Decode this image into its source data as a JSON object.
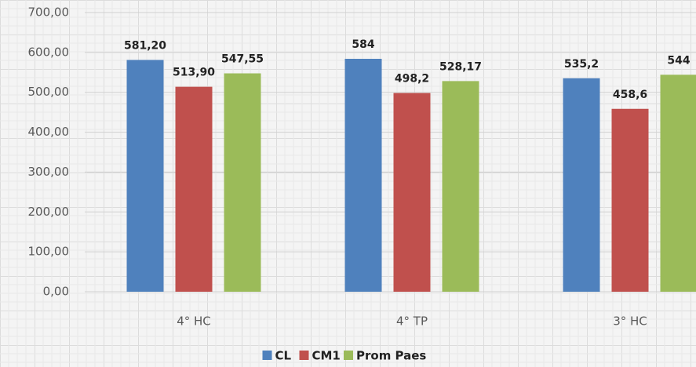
{
  "chart_data": {
    "type": "bar",
    "categories": [
      "4° HC",
      "4° TP",
      "3° HC"
    ],
    "series": [
      {
        "name": "CL",
        "color": "#4f81bd",
        "values": [
          581.2,
          584,
          535.2
        ],
        "value_labels": [
          "581,20",
          "584",
          "535,2"
        ]
      },
      {
        "name": "CM1",
        "color": "#c0504d",
        "values": [
          513.9,
          498.2,
          458.6
        ],
        "value_labels": [
          "513,90",
          "498,2",
          "458,6"
        ]
      },
      {
        "name": "Prom Paes",
        "color": "#9bbb59",
        "values": [
          547.55,
          528.17,
          544
        ],
        "value_labels": [
          "547,55",
          "528,17",
          "544"
        ]
      }
    ],
    "ylim": [
      0,
      700
    ],
    "yticks": [
      {
        "value": 0,
        "label": "0,00"
      },
      {
        "value": 100,
        "label": "100,00"
      },
      {
        "value": 200,
        "label": "200,00"
      },
      {
        "value": 300,
        "label": "300,00"
      },
      {
        "value": 400,
        "label": "400,00"
      },
      {
        "value": 500,
        "label": "500,00"
      },
      {
        "value": 600,
        "label": "600,00"
      },
      {
        "value": 700,
        "label": "700,00"
      }
    ],
    "grid": true,
    "legend": "bottom"
  }
}
